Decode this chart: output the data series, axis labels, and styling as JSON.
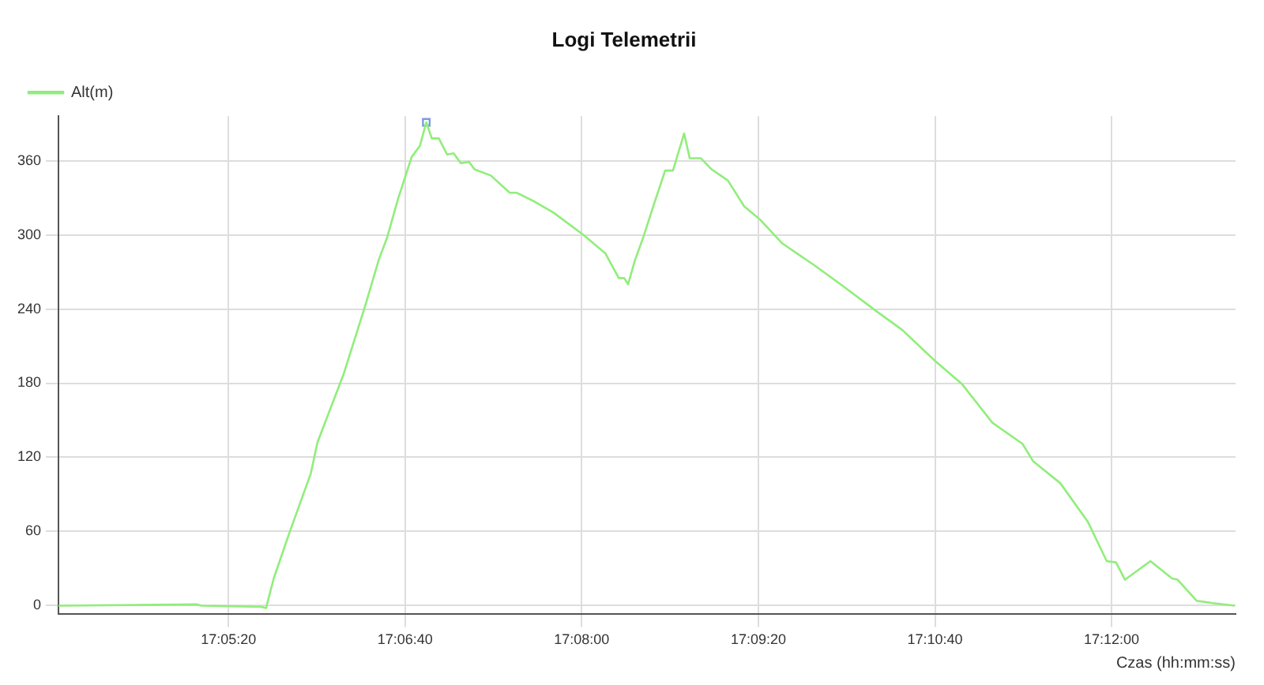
{
  "chart_data": {
    "type": "line",
    "title": "Logi Telemetrii",
    "xlabel": "Czas (hh:mm:ss)",
    "xlim": [
      17.0675,
      17.2156
    ],
    "xticks": [
      {
        "value": 17.08889,
        "label": "17:05:20"
      },
      {
        "value": 17.11111,
        "label": "17:06:40"
      },
      {
        "value": 17.13333,
        "label": "17:08:00"
      },
      {
        "value": 17.15556,
        "label": "17:09:20"
      },
      {
        "value": 17.17778,
        "label": "17:10:40"
      },
      {
        "value": 17.2,
        "label": "17:12:00"
      }
    ],
    "ylim": [
      -7,
      396
    ],
    "yticks": [
      0,
      60,
      120,
      180,
      240,
      300,
      360
    ],
    "grid": true,
    "legend": "top left",
    "marker": "none",
    "line_style": "solid",
    "series": [
      {
        "name": "Alt(m)",
        "color": "#90ee7a",
        "x": [
          17.0675,
          17.08486,
          17.08556,
          17.09306,
          17.09361,
          17.09458,
          17.0965,
          17.09925,
          17.10008,
          17.10336,
          17.10611,
          17.10781,
          17.10886,
          17.11022,
          17.11194,
          17.11297,
          17.11378,
          17.11447,
          17.11536,
          17.11639,
          17.11722,
          17.11811,
          17.11917,
          17.11983,
          17.12189,
          17.12428,
          17.12517,
          17.12736,
          17.12978,
          17.13353,
          17.13631,
          17.138,
          17.13869,
          17.13917,
          17.14006,
          17.14108,
          17.14233,
          17.14383,
          17.14481,
          17.14622,
          17.14692,
          17.14831,
          17.14967,
          17.15172,
          17.15378,
          17.15583,
          17.15858,
          17.16269,
          17.16611,
          17.17025,
          17.17367,
          17.17778,
          17.18122,
          17.185,
          17.18878,
          17.19011,
          17.19356,
          17.197,
          17.19939,
          17.20056,
          17.20169,
          17.20489,
          17.20761,
          17.20831,
          17.21069,
          17.21275,
          17.2155
        ],
        "values": [
          0,
          1,
          0,
          -1,
          -2,
          22,
          58,
          107,
          132,
          187,
          243,
          280,
          298,
          329,
          363,
          372,
          391,
          378,
          378,
          365,
          366,
          358,
          359,
          353,
          348,
          334,
          334,
          327,
          318,
          300,
          285,
          265,
          265,
          260,
          280,
          298,
          323,
          352,
          352,
          382,
          362,
          362,
          353,
          344,
          323,
          312,
          293,
          275,
          259,
          239,
          223,
          198,
          179,
          148,
          131,
          117,
          99,
          68,
          36,
          35,
          21,
          36,
          22,
          21,
          4,
          2,
          0
        ]
      },
      {
        "type": "scatter",
        "marker": "square",
        "color": "#7b9be0",
        "x": [
          17.11378
        ],
        "values": [
          391
        ]
      }
    ]
  }
}
